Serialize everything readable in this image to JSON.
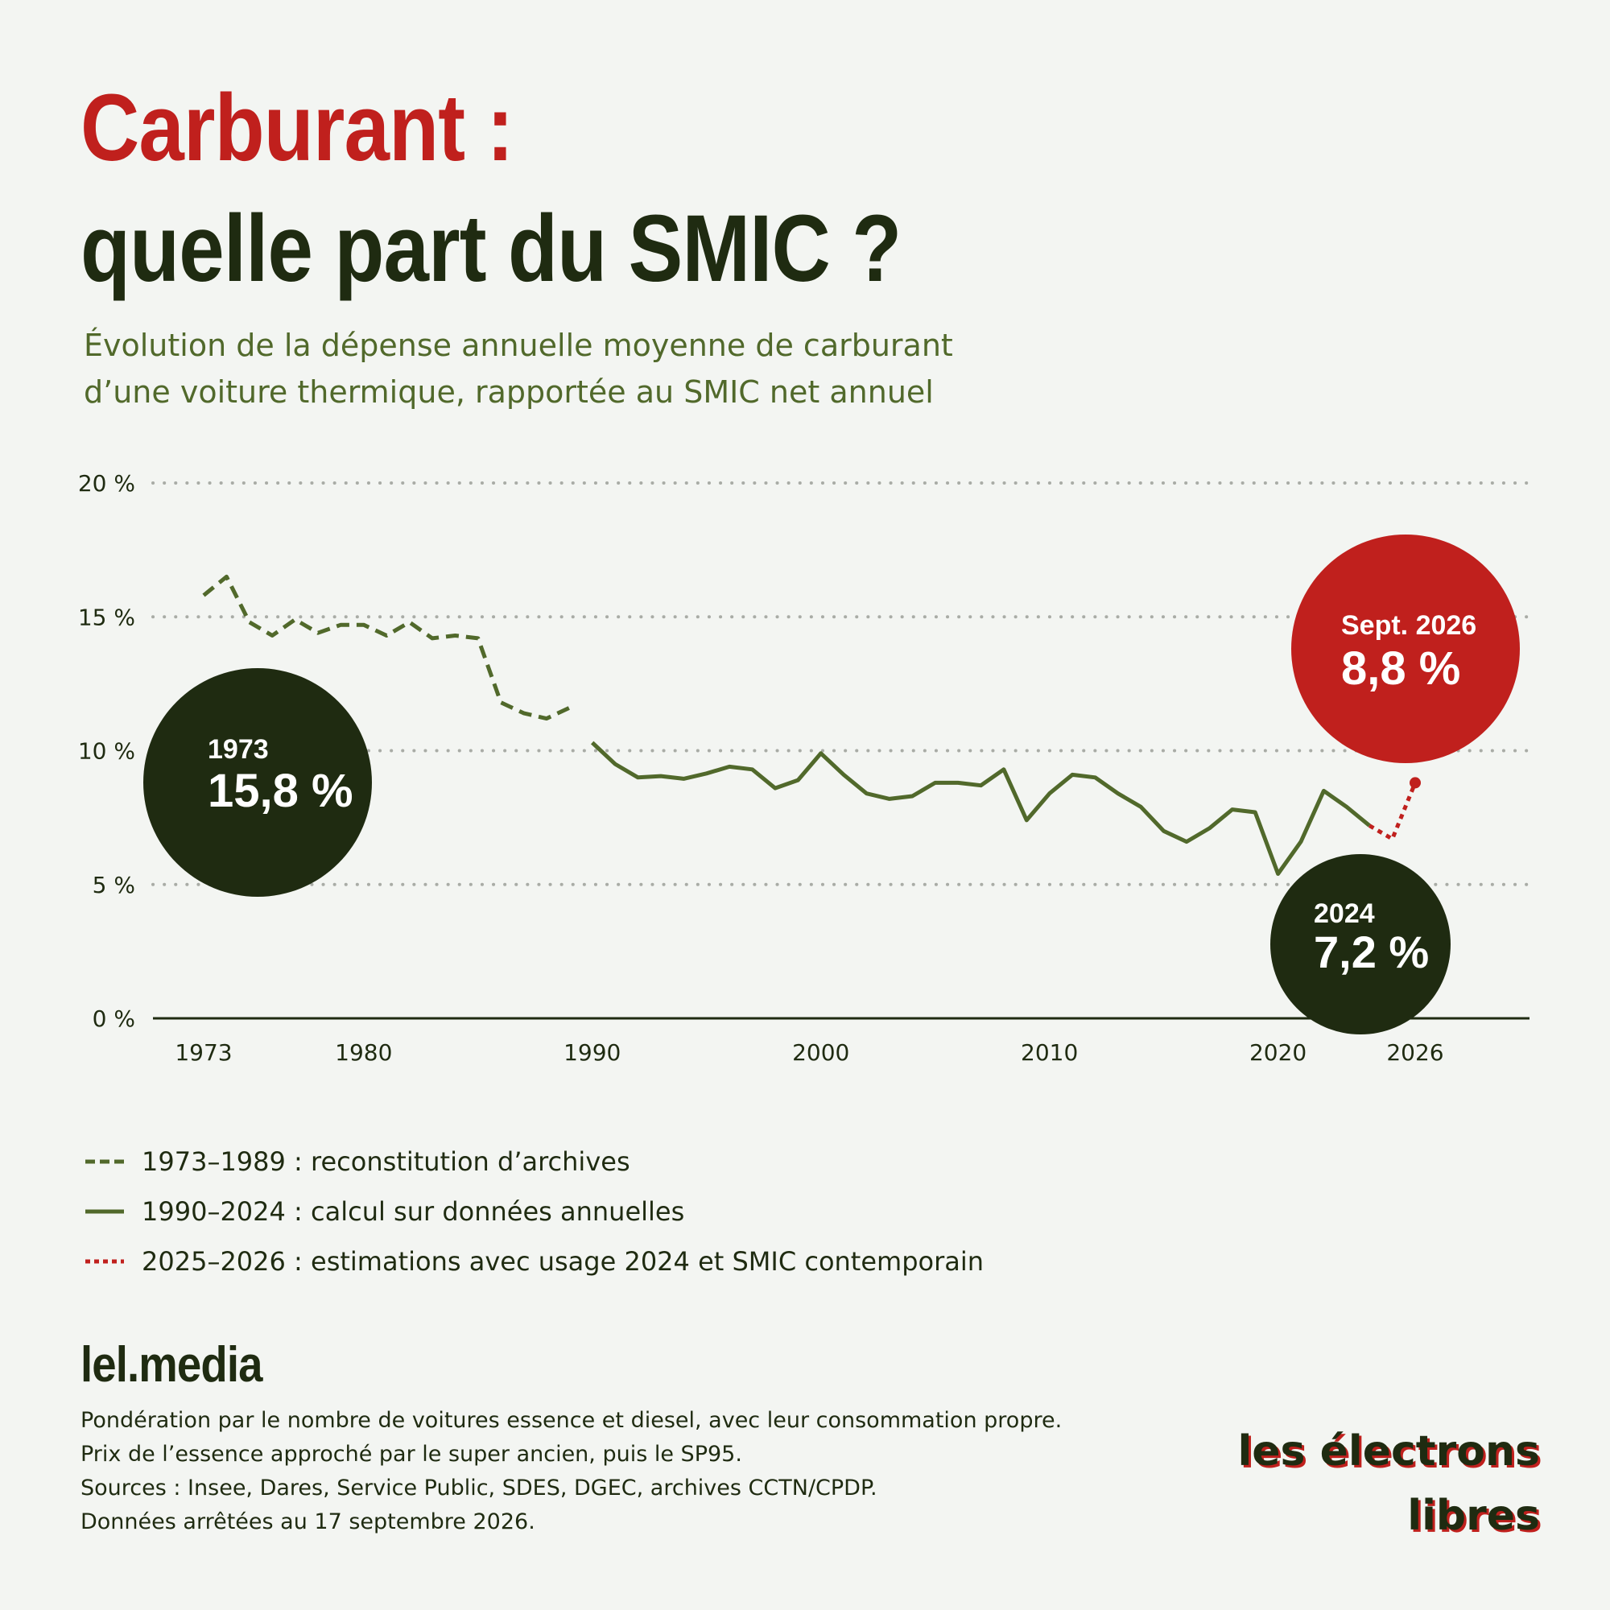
{
  "header": {
    "title_line1": "Carburant :",
    "title_line2": "quelle part du SMIC ?",
    "subtitle_line1": "Évolution de la dépense annuelle moyenne de carburant",
    "subtitle_line2": "d’une voiture thermique, rapportée au SMIC net annuel"
  },
  "chart_data": {
    "type": "line",
    "xlim": [
      1970,
      2030
    ],
    "ylim": [
      0,
      20
    ],
    "y_ticks": [
      {
        "value": 0,
        "label": "0 %"
      },
      {
        "value": 5,
        "label": "5 %"
      },
      {
        "value": 10,
        "label": "10 %"
      },
      {
        "value": 15,
        "label": "15 %"
      },
      {
        "value": 20,
        "label": "20 %"
      }
    ],
    "x_ticks": [
      {
        "value": 1973,
        "label": "1973"
      },
      {
        "value": 1980,
        "label": "1980"
      },
      {
        "value": 1990,
        "label": "1990"
      },
      {
        "value": 2000,
        "label": "2000"
      },
      {
        "value": 2010,
        "label": "2010"
      },
      {
        "value": 2020,
        "label": "2020"
      },
      {
        "value": 2026,
        "label": "2026"
      }
    ],
    "grid": "horizontal-dotted",
    "series": [
      {
        "style": "dashed",
        "color": "#51692b",
        "x": [
          1973,
          1974,
          1975,
          1976,
          1977,
          1978,
          1979,
          1980,
          1981,
          1982,
          1983,
          1984,
          1985,
          1986,
          1987,
          1988,
          1989
        ],
        "y": [
          15.8,
          16.5,
          14.8,
          14.3,
          14.9,
          14.4,
          14.7,
          14.7,
          14.3,
          14.8,
          14.2,
          14.3,
          14.2,
          11.8,
          11.4,
          11.2,
          11.6
        ]
      },
      {
        "style": "solid",
        "color": "#51692b",
        "x": [
          1990,
          1991,
          1992,
          1993,
          1994,
          1995,
          1996,
          1997,
          1998,
          1999,
          2000,
          2001,
          2002,
          2003,
          2004,
          2005,
          2006,
          2007,
          2008,
          2009,
          2010,
          2011,
          2012,
          2013,
          2014,
          2015,
          2016,
          2017,
          2018,
          2019,
          2020,
          2021,
          2022,
          2023,
          2024
        ],
        "y": [
          10.3,
          9.5,
          9.0,
          9.05,
          8.95,
          9.15,
          9.4,
          9.3,
          8.6,
          8.9,
          9.9,
          9.1,
          8.4,
          8.2,
          8.3,
          8.8,
          8.8,
          8.7,
          9.3,
          7.4,
          8.4,
          9.1,
          9.0,
          8.4,
          7.9,
          7.0,
          6.6,
          7.1,
          7.8,
          7.7,
          5.4,
          6.6,
          8.5,
          7.9,
          7.2
        ]
      },
      {
        "style": "dotted",
        "color": "#c0201d",
        "x": [
          2024,
          2025,
          2026
        ],
        "y": [
          7.2,
          6.7,
          8.8
        ]
      }
    ],
    "annotations": [
      {
        "year_label": "1973",
        "value_label": "15,8 %",
        "color": "#1f2b11"
      },
      {
        "year_label": "2024",
        "value_label": "7,2 %",
        "color": "#1f2b11"
      },
      {
        "year_label": "Sept. 2026",
        "value_label": "8,8 %",
        "color": "#c0201d"
      }
    ],
    "legend": [
      {
        "style": "dashed",
        "color": "#51692b",
        "label": "1973–1989 : reconstitution d’archives"
      },
      {
        "style": "solid",
        "color": "#51692b",
        "label": "1990–2024 : calcul sur données annuelles"
      },
      {
        "style": "dotted",
        "color": "#c0201d",
        "label": "2025–2026 : estimations avec usage 2024 et SMIC contemporain"
      }
    ]
  },
  "footer": {
    "brand": "lel.media",
    "notes": [
      "Pondération par le nombre de voitures essence et diesel, avec leur consommation propre.",
      "Prix de l’essence approché par le super ancien, puis le SP95.",
      "Sources : Insee, Dares, Service Public, SDES, DGEC, archives CCTN/CPDP.",
      "Données arrêtées au 17 septembre 2026."
    ],
    "logo_line1": "les électrons",
    "logo_line2": "libres"
  },
  "colors": {
    "background": "#f3f5f2",
    "dark_green": "#1f2b11",
    "olive": "#51692b",
    "red": "#c0201d"
  }
}
